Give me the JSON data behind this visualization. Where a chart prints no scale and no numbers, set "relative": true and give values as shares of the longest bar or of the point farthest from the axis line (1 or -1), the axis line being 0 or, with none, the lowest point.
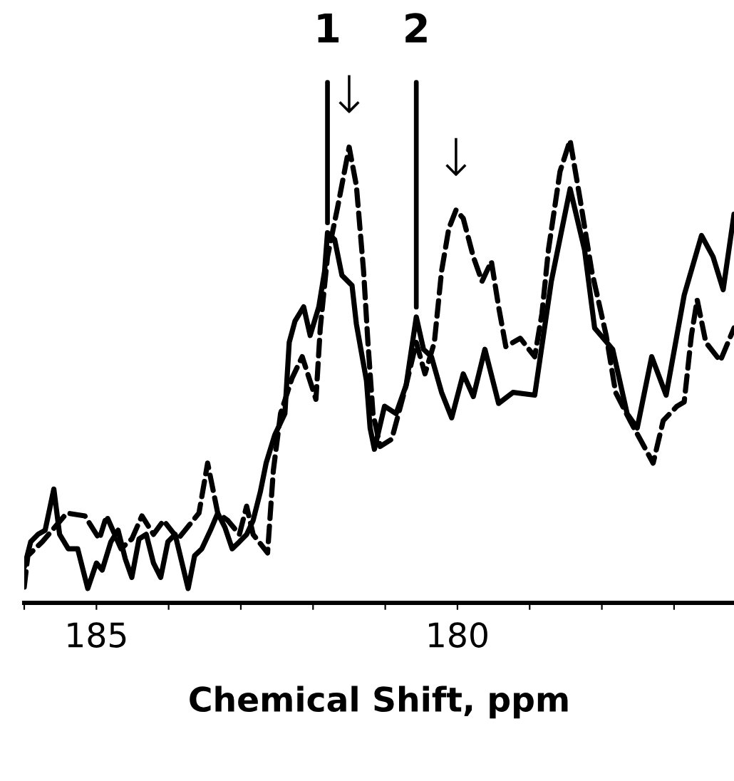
{
  "chart_data": {
    "type": "line",
    "relative": true,
    "xlabel": "Chemical Shift, ppm",
    "xlim": [
      186.0,
      176.17
    ],
    "xticks": [
      {
        "value": 186,
        "label": null
      },
      185,
      {
        "value": 184,
        "label": null
      },
      {
        "value": 183,
        "label": null
      },
      {
        "value": 182,
        "label": null
      },
      {
        "value": 181,
        "label": null
      },
      180,
      {
        "value": 179,
        "label": null
      },
      {
        "value": 178,
        "label": null
      },
      {
        "value": 177,
        "label": null
      }
    ],
    "annotations": [
      {
        "text": "1",
        "x": 181.8,
        "y": 0.8
      },
      {
        "text": "↓",
        "x": 181.5,
        "y": 0.985
      },
      {
        "text": "2",
        "x": 180.57,
        "y": 0.618
      },
      {
        "text": "↓",
        "x": 180.02,
        "y": 0.849
      }
    ],
    "series": [
      {
        "color": "#000000",
        "line_style": "solid",
        "x": [
          186.0,
          185.91,
          185.81,
          185.71,
          185.59,
          185.51,
          185.39,
          185.26,
          185.12,
          185.0,
          184.92,
          184.8,
          184.7,
          184.6,
          184.51,
          184.41,
          184.31,
          184.21,
          184.11,
          184.01,
          183.91,
          183.73,
          183.64,
          183.54,
          183.42,
          183.32,
          183.22,
          183.12,
          183.02,
          182.92,
          182.83,
          182.73,
          182.65,
          182.53,
          182.39,
          182.33,
          182.25,
          182.13,
          182.04,
          181.92,
          181.84,
          181.8,
          181.7,
          181.6,
          181.46,
          181.4,
          181.26,
          181.21,
          181.15,
          181.01,
          180.85,
          180.71,
          180.57,
          180.47,
          180.36,
          180.22,
          180.08,
          179.92,
          179.78,
          179.62,
          179.43,
          179.23,
          178.93,
          178.7,
          178.44,
          178.24,
          178.1,
          177.85,
          177.65,
          177.51,
          177.31,
          177.11,
          176.86,
          176.62,
          176.46,
          176.32,
          176.17
        ],
        "values": [
          0.077,
          0.132,
          0.148,
          0.157,
          0.246,
          0.148,
          0.117,
          0.117,
          0.031,
          0.086,
          0.071,
          0.132,
          0.157,
          0.095,
          0.055,
          0.138,
          0.148,
          0.086,
          0.055,
          0.132,
          0.148,
          0.031,
          0.102,
          0.117,
          0.157,
          0.194,
          0.163,
          0.117,
          0.132,
          0.148,
          0.178,
          0.24,
          0.302,
          0.363,
          0.409,
          0.563,
          0.609,
          0.64,
          0.578,
          0.64,
          0.717,
          0.8,
          0.785,
          0.708,
          0.686,
          0.603,
          0.48,
          0.378,
          0.332,
          0.425,
          0.409,
          0.471,
          0.618,
          0.548,
          0.532,
          0.455,
          0.4,
          0.495,
          0.446,
          0.548,
          0.431,
          0.455,
          0.449,
          0.695,
          0.895,
          0.763,
          0.594,
          0.548,
          0.409,
          0.378,
          0.532,
          0.449,
          0.665,
          0.794,
          0.748,
          0.677,
          0.84
        ]
      },
      {
        "color": "#000000",
        "line_style": "dashed",
        "x": [
          186.0,
          185.95,
          185.75,
          185.41,
          185.16,
          184.96,
          184.86,
          184.66,
          184.51,
          184.37,
          184.21,
          184.07,
          183.87,
          183.71,
          183.58,
          183.46,
          183.32,
          183.18,
          183.02,
          182.92,
          182.83,
          182.63,
          182.55,
          182.45,
          182.29,
          182.15,
          181.96,
          181.9,
          181.8,
          181.66,
          181.5,
          181.4,
          181.3,
          181.24,
          181.17,
          181.07,
          180.91,
          180.71,
          180.57,
          180.45,
          180.32,
          180.22,
          180.12,
          180.02,
          179.92,
          179.78,
          179.66,
          179.53,
          179.43,
          179.33,
          179.13,
          178.93,
          178.83,
          178.74,
          178.58,
          178.44,
          178.3,
          178.14,
          177.94,
          177.81,
          177.61,
          177.45,
          177.29,
          177.15,
          176.96,
          176.86,
          176.76,
          176.68,
          176.56,
          176.36,
          176.17
        ],
        "values": [
          0.034,
          0.102,
          0.132,
          0.194,
          0.188,
          0.138,
          0.188,
          0.117,
          0.138,
          0.188,
          0.148,
          0.178,
          0.138,
          0.169,
          0.194,
          0.302,
          0.194,
          0.178,
          0.148,
          0.209,
          0.148,
          0.108,
          0.286,
          0.409,
          0.486,
          0.532,
          0.44,
          0.594,
          0.748,
          0.855,
          0.985,
          0.902,
          0.717,
          0.563,
          0.409,
          0.338,
          0.354,
          0.471,
          0.563,
          0.495,
          0.563,
          0.717,
          0.809,
          0.849,
          0.831,
          0.748,
          0.695,
          0.738,
          0.64,
          0.554,
          0.572,
          0.532,
          0.625,
          0.763,
          0.932,
          1.0,
          0.871,
          0.717,
          0.578,
          0.455,
          0.394,
          0.348,
          0.302,
          0.394,
          0.425,
          0.434,
          0.578,
          0.655,
          0.563,
          0.523,
          0.594
        ]
      }
    ]
  }
}
